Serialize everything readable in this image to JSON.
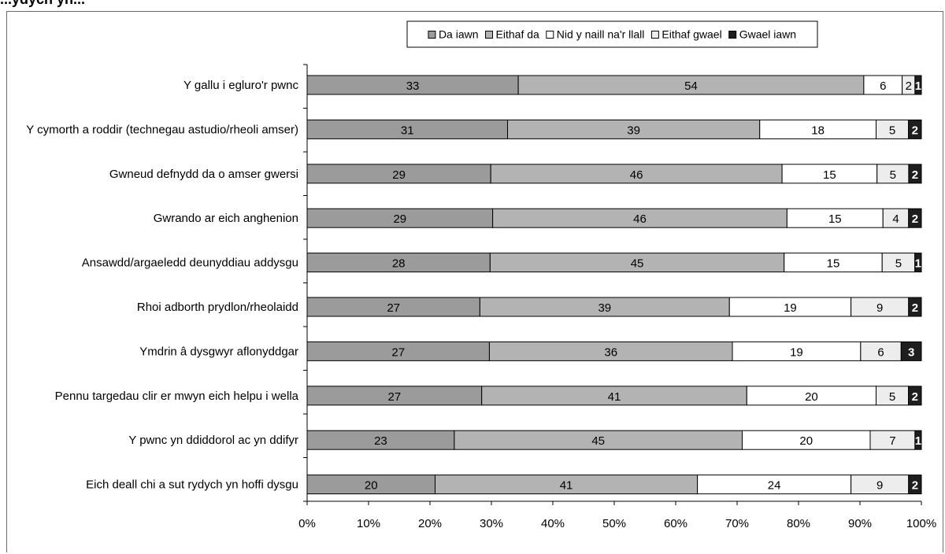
{
  "header_fragment": "...ydych yn...",
  "chart_data": {
    "type": "bar",
    "orientation": "horizontal",
    "stacked": "percent",
    "categories": [
      "Y gallu i egluro'r pwnc",
      "Y cymorth a roddir (technegau astudio/rheoli amser)",
      "Gwneud defnydd da o amser gwersi",
      "Gwrando ar eich anghenion",
      "Ansawdd/argaeledd deunyddiau addysgu",
      "Rhoi adborth prydlon/rheolaidd",
      "Ymdrin â dysgwyr aflonyddgar",
      "Pennu targedau clir er mwyn eich helpu i wella",
      "Y pwnc yn ddiddorol ac yn ddifyr",
      "Eich deall chi a sut rydych yn hoffi dysgu"
    ],
    "series": [
      {
        "name": "Da iawn",
        "color": "#9b9b9b",
        "label_color": "#000000",
        "values": [
          33,
          31,
          29,
          29,
          28,
          27,
          27,
          27,
          23,
          20
        ]
      },
      {
        "name": "Eithaf da",
        "color": "#b3b3b3",
        "label_color": "#000000",
        "values": [
          54,
          39,
          46,
          46,
          45,
          39,
          36,
          41,
          45,
          41
        ]
      },
      {
        "name": "Nid y naill na'r llall",
        "color": "#ffffff",
        "label_color": "#000000",
        "values": [
          6,
          18,
          15,
          15,
          15,
          19,
          19,
          20,
          20,
          24
        ]
      },
      {
        "name": "Eithaf gwael",
        "color": "#ededed",
        "label_color": "#000000",
        "values": [
          2,
          5,
          5,
          4,
          5,
          9,
          6,
          5,
          7,
          9
        ]
      },
      {
        "name": "Gwael iawn",
        "color": "#1e1e1e",
        "label_color": "#ffffff",
        "values": [
          1,
          2,
          2,
          2,
          1,
          2,
          3,
          2,
          1,
          2
        ]
      }
    ],
    "x_ticks": [
      "0%",
      "10%",
      "20%",
      "30%",
      "40%",
      "50%",
      "60%",
      "70%",
      "80%",
      "90%",
      "100%"
    ],
    "xlim": [
      0,
      100
    ],
    "legend_position": "top",
    "grid": false
  }
}
